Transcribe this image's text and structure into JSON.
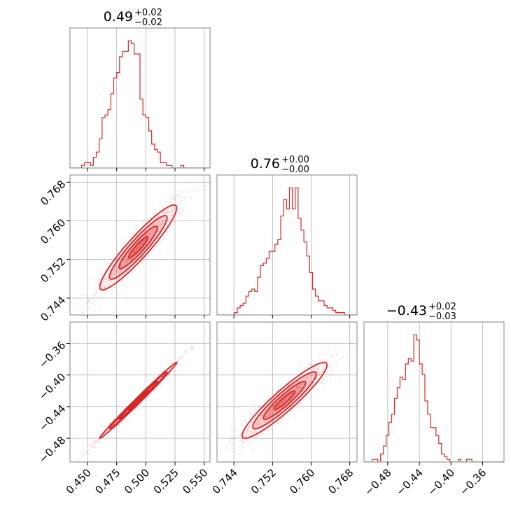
{
  "chart_data": {
    "type": "corner",
    "color": "#d62728",
    "grid": true,
    "variables": [
      {
        "range": [
          0.435,
          0.555
        ],
        "ticks": [
          "0.450",
          "0.475",
          "0.500",
          "0.525",
          "0.550"
        ],
        "tick_values": [
          0.45,
          0.475,
          0.5,
          0.525,
          0.55
        ],
        "title_main": "0.49",
        "title_sup": "+0.02",
        "title_sub": "−0.02",
        "hist": {
          "edges_start": 0.435,
          "bin_width": 0.0025,
          "counts": [
            0,
            0,
            0,
            0,
            1,
            2,
            2,
            1,
            4,
            6,
            11,
            19,
            20,
            22,
            28,
            34,
            36,
            42,
            44,
            44,
            48,
            47,
            43,
            43,
            26,
            20,
            19,
            14,
            9,
            7,
            6,
            2,
            2,
            1,
            1,
            0,
            0,
            0,
            1,
            0,
            0,
            0,
            0,
            0,
            0,
            0,
            0,
            0
          ]
        }
      },
      {
        "range": [
          0.7405,
          0.7695
        ],
        "ticks": [
          "0.744",
          "0.752",
          "0.760",
          "0.768"
        ],
        "tick_values": [
          0.744,
          0.752,
          0.76,
          0.768
        ],
        "title_main": "0.76",
        "title_sup": "+0.00",
        "title_sub": "−0.00",
        "hist": {
          "edges_start": 0.7405,
          "bin_width": 0.0006,
          "counts": [
            0,
            0,
            0,
            0,
            0,
            0,
            1,
            3,
            4,
            5,
            8,
            10,
            11,
            10,
            16,
            21,
            22,
            24,
            27,
            27,
            30,
            32,
            42,
            49,
            45,
            54,
            45,
            54,
            41,
            36,
            31,
            25,
            18,
            11,
            8,
            6,
            6,
            4,
            3,
            3,
            2,
            1,
            1,
            1,
            0,
            0,
            0,
            0,
            0,
            0
          ]
        }
      },
      {
        "range": [
          -0.51,
          -0.333
        ],
        "ticks": [
          "−0.48",
          "−0.44",
          "−0.40",
          "−0.36"
        ],
        "tick_values": [
          -0.48,
          -0.44,
          -0.4,
          -0.36
        ],
        "title_main": "−0.43",
        "title_sup": "+0.02",
        "title_sub": "−0.03",
        "hist": {
          "edges_start": -0.51,
          "bin_width": 0.0035,
          "counts": [
            0,
            0,
            0,
            1,
            1,
            0,
            3,
            6,
            10,
            15,
            18,
            24,
            28,
            32,
            31,
            37,
            39,
            38,
            48,
            46,
            37,
            33,
            23,
            18,
            13,
            13,
            10,
            7,
            3,
            2,
            1,
            0,
            0,
            0,
            1,
            0,
            0,
            1,
            1,
            0,
            0,
            0,
            0,
            0,
            0,
            0,
            0,
            0,
            0,
            0,
            0
          ]
        }
      }
    ],
    "pairs": [
      {
        "x_var": 0,
        "y_var": 1,
        "mean": [
          0.4935,
          0.7545
        ],
        "sd": [
          0.0165,
          0.0044
        ],
        "corr": 0.93
      },
      {
        "x_var": 0,
        "y_var": 2,
        "mean": [
          0.4935,
          -0.432
        ],
        "sd": [
          0.0165,
          0.024
        ],
        "corr": 0.995
      },
      {
        "x_var": 1,
        "y_var": 2,
        "mean": [
          0.7545,
          -0.432
        ],
        "sd": [
          0.0044,
          0.024
        ],
        "corr": 0.93
      }
    ],
    "contour_levels_sigma": [
      0.5,
      1.0,
      1.5,
      2.0
    ]
  }
}
